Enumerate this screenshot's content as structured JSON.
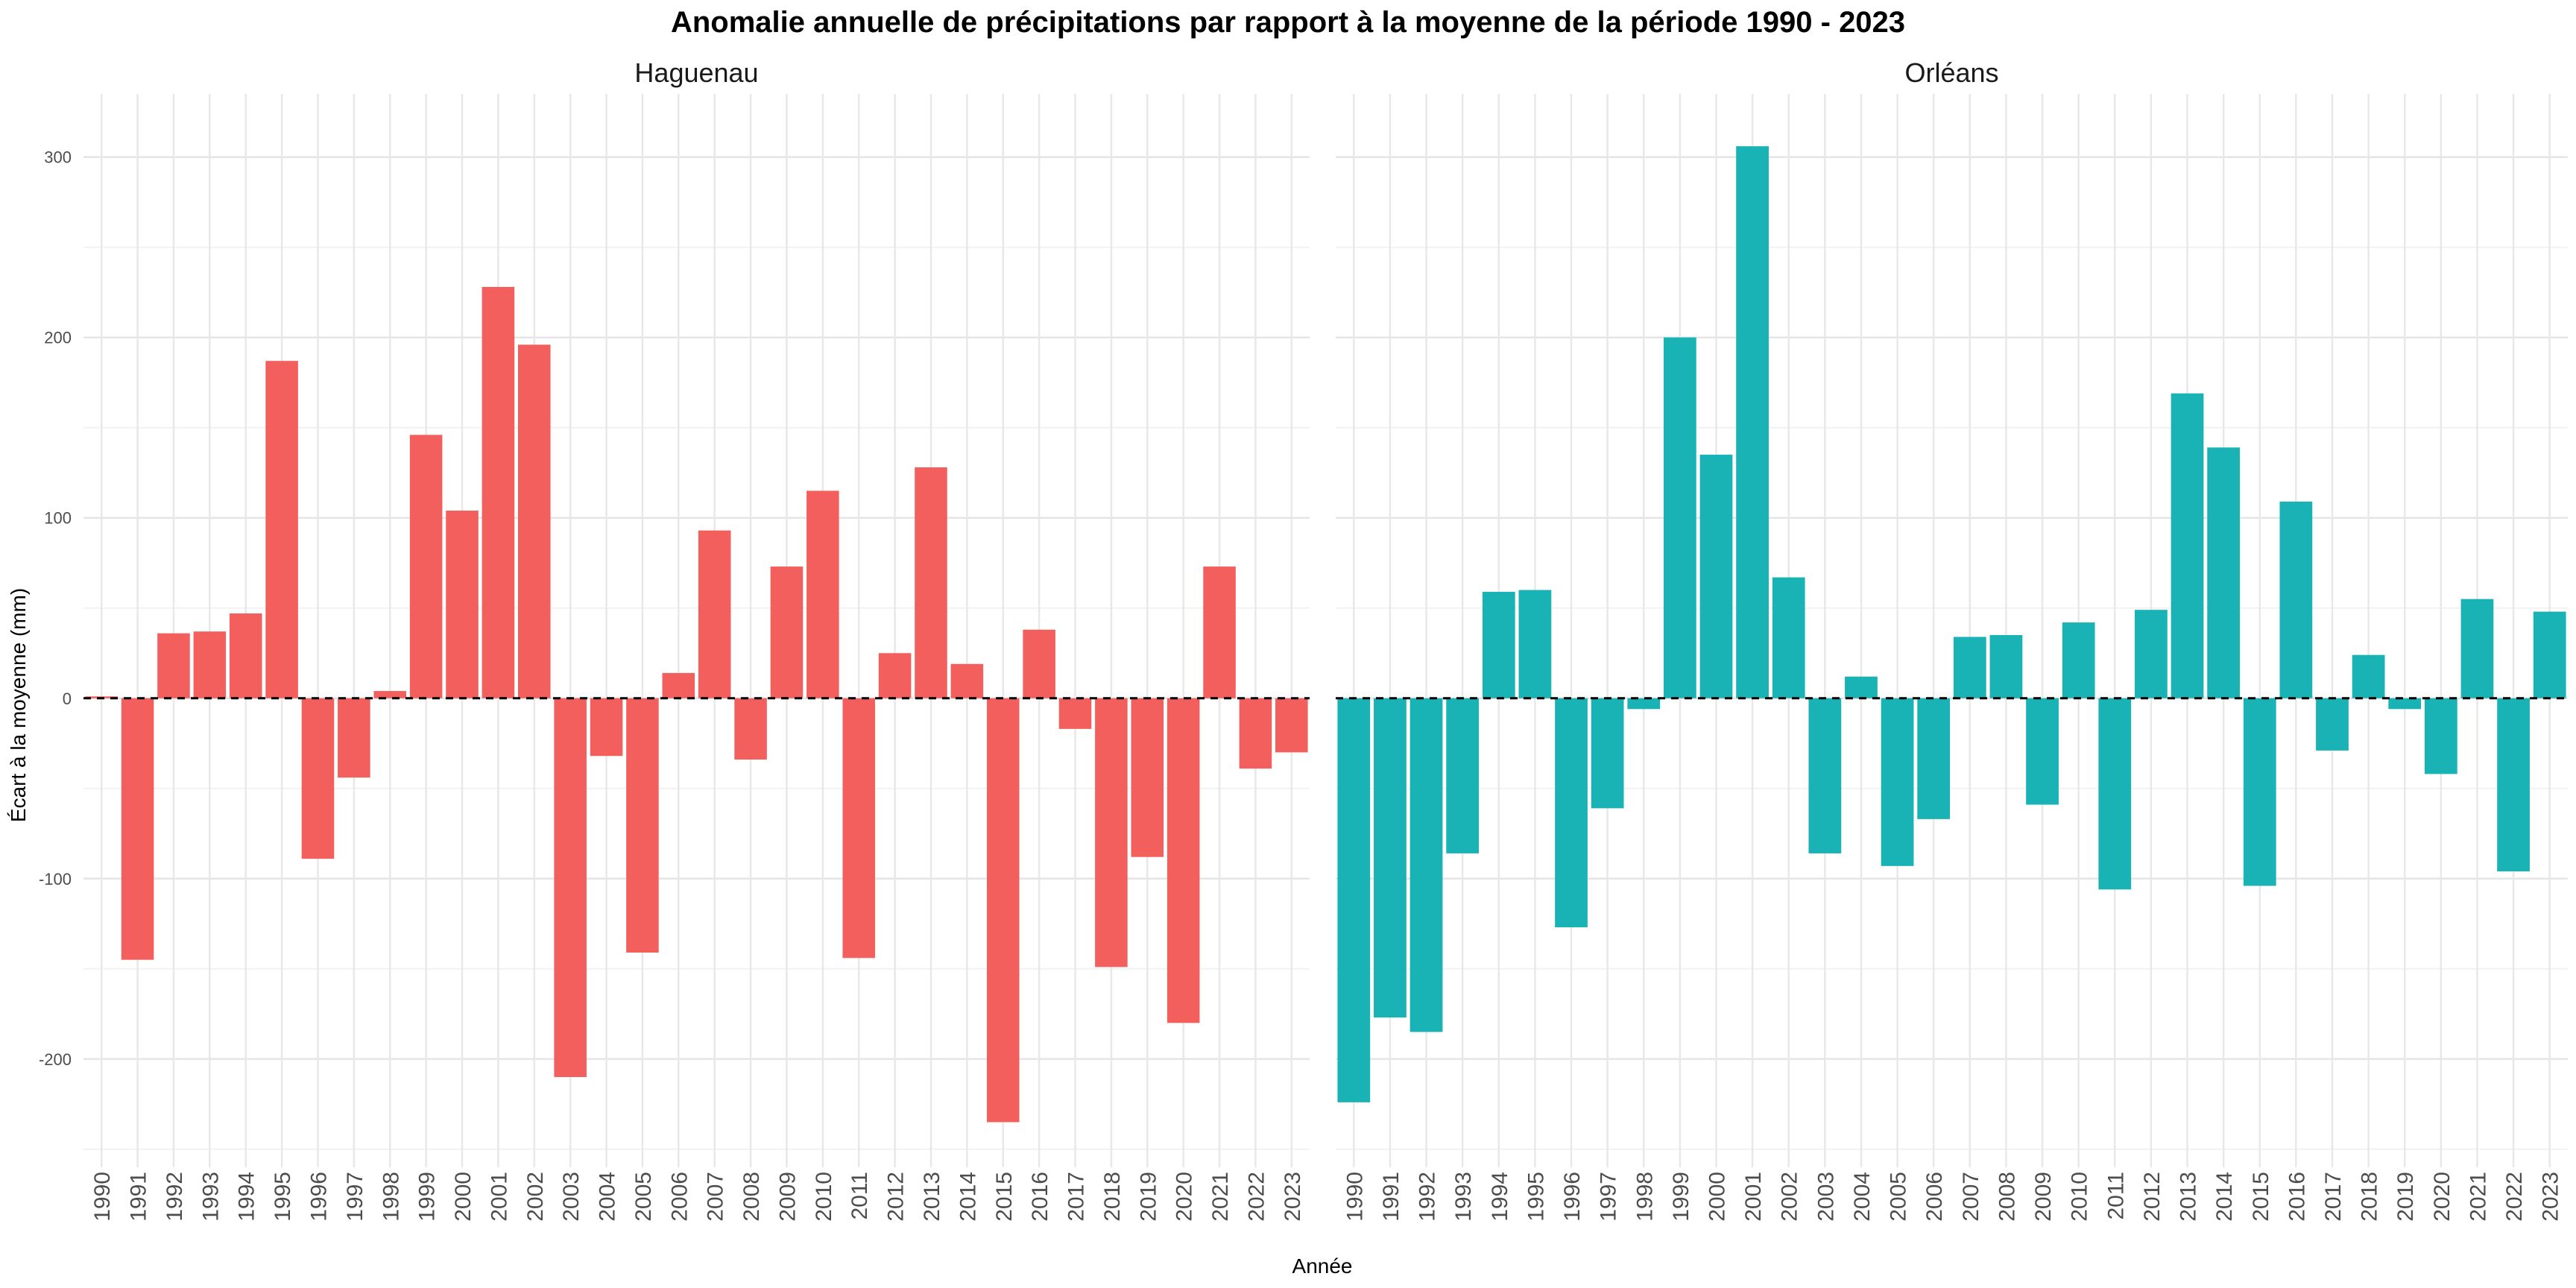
{
  "chart_data": {
    "type": "bar",
    "title": "Anomalie annuelle de précipitations par rapport à la moyenne de la période 1990 - 2023",
    "xlabel": "Année",
    "ylabel": "Écart à la moyenne (mm)",
    "ylim": [
      -260,
      335
    ],
    "yticks": [
      300,
      200,
      100,
      0,
      -100,
      -200
    ],
    "ytick_labels": [
      "300",
      "200",
      "100",
      "0",
      "-100",
      "-200"
    ],
    "grid": true,
    "legend": "none",
    "reference_line": {
      "y": 0,
      "style": "dashed",
      "color": "#000000"
    },
    "categories": [
      "1990",
      "1991",
      "1992",
      "1993",
      "1994",
      "1995",
      "1996",
      "1997",
      "1998",
      "1999",
      "2000",
      "2001",
      "2002",
      "2003",
      "2004",
      "2005",
      "2006",
      "2007",
      "2008",
      "2009",
      "2010",
      "2011",
      "2012",
      "2013",
      "2014",
      "2015",
      "2016",
      "2017",
      "2018",
      "2019",
      "2020",
      "2021",
      "2022",
      "2023"
    ],
    "panels": [
      {
        "name": "Haguenau",
        "color": "#F25F5C",
        "values": [
          1,
          -145,
          36,
          37,
          47,
          187,
          -89,
          -44,
          4,
          146,
          104,
          228,
          196,
          -210,
          -32,
          -141,
          14,
          93,
          -34,
          73,
          115,
          -144,
          25,
          128,
          19,
          -235,
          38,
          -17,
          -149,
          -88,
          -180,
          73,
          -39,
          -30
        ]
      },
      {
        "name": "Orléans",
        "color": "#19B3B6",
        "values": [
          -224,
          -177,
          -185,
          -86,
          59,
          60,
          -127,
          -61,
          -6,
          200,
          135,
          306,
          67,
          -86,
          12,
          -93,
          -67,
          34,
          35,
          -59,
          42,
          -106,
          49,
          169,
          139,
          -104,
          109,
          -29,
          24,
          -6,
          -42,
          55,
          -96,
          48
        ]
      }
    ]
  }
}
